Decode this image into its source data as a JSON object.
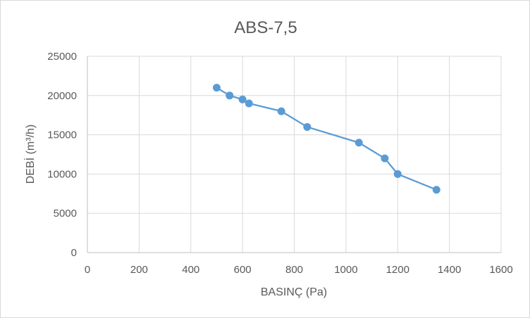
{
  "chart_data": {
    "type": "scatter",
    "title": "ABS-7,5",
    "xlabel": "BASINÇ (Pa)",
    "ylabel": "DEBİ (m³/h)",
    "xlim": [
      0,
      1600
    ],
    "ylim": [
      0,
      25000
    ],
    "x_ticks": [
      0,
      200,
      400,
      600,
      800,
      1000,
      1200,
      1400,
      1600
    ],
    "y_ticks": [
      0,
      5000,
      10000,
      15000,
      20000,
      25000
    ],
    "x_tick_labels": [
      "0",
      "200",
      "400",
      "600",
      "800",
      "1000",
      "1200",
      "1400",
      "1600"
    ],
    "y_tick_labels": [
      "0",
      "5000",
      "10000",
      "15000",
      "20000",
      "25000"
    ],
    "grid": true,
    "legend": "none",
    "series": [
      {
        "x": [
          500,
          550,
          600,
          625,
          750,
          850,
          1050,
          1150,
          1200,
          1350
        ],
        "y": [
          21000,
          20000,
          19500,
          19000,
          18000,
          16000,
          14000,
          12000,
          10000,
          8000
        ],
        "color": "#5b9bd5",
        "markers": true,
        "line": true
      }
    ]
  }
}
